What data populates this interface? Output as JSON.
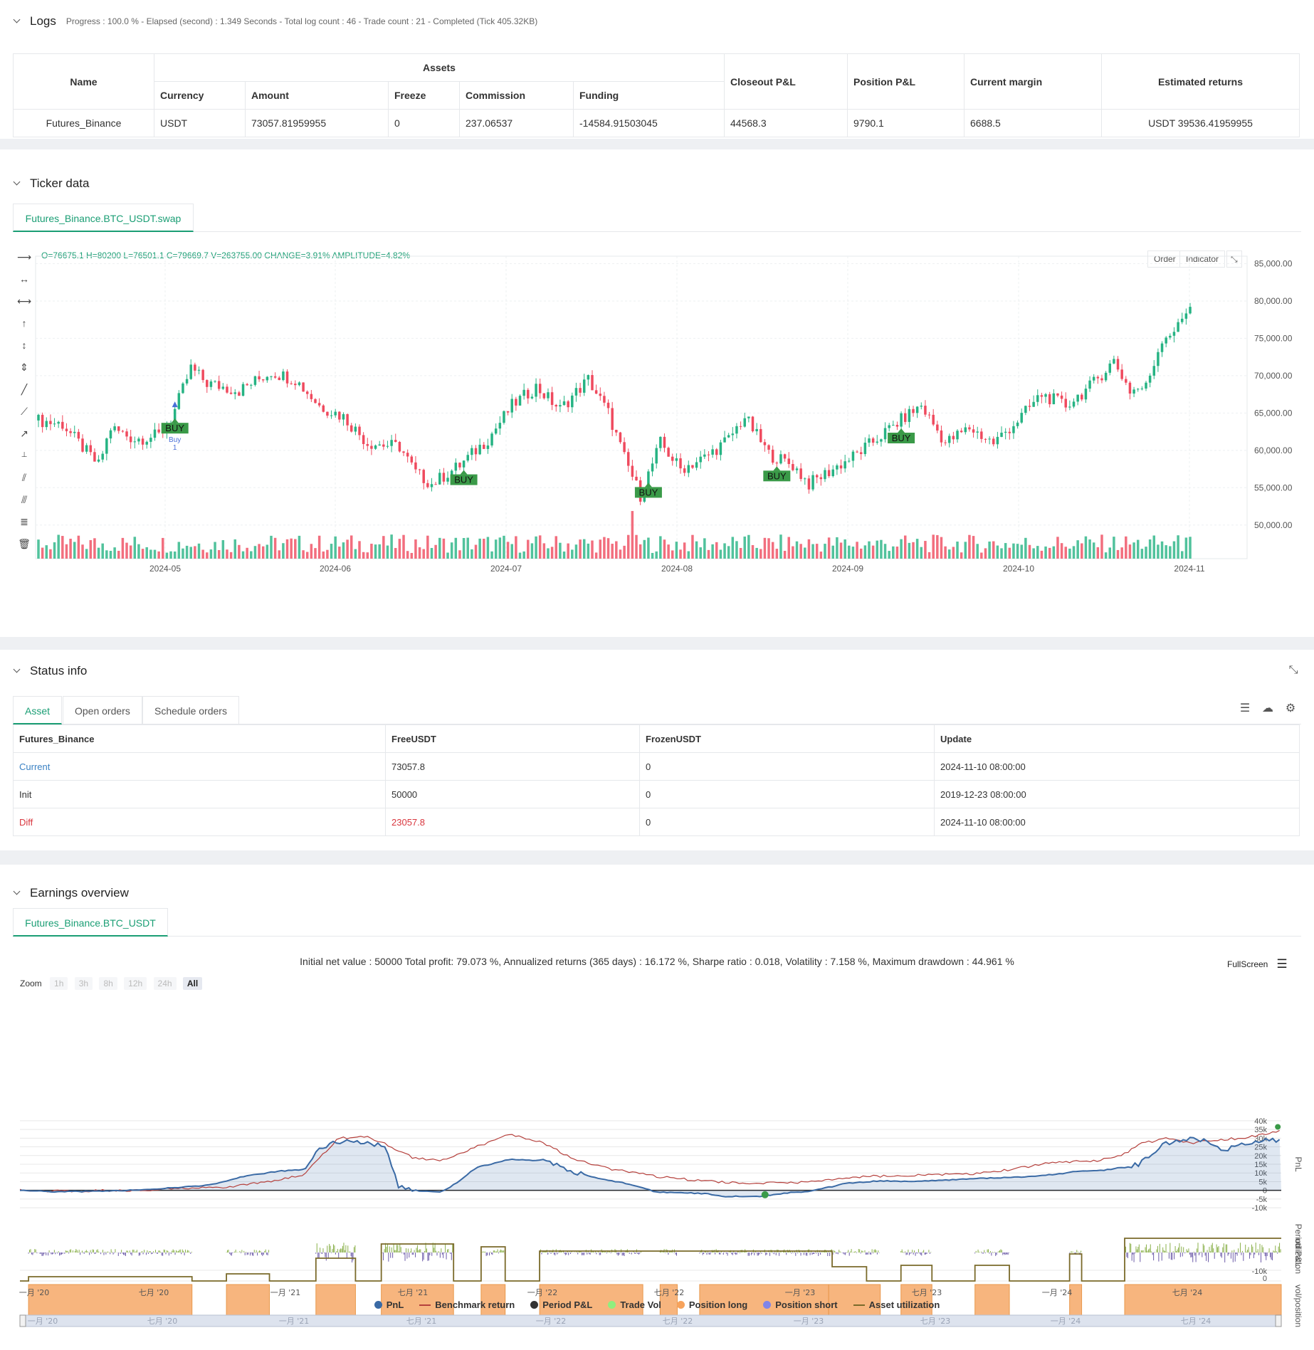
{
  "logs": {
    "title": "Logs",
    "summary": "Progress : 100.0 % - Elapsed (second) : 1.349  Seconds - Total log count : 46 - Trade count : 21 - Completed (Tick 405.32KB)",
    "table": {
      "headers": {
        "name": "Name",
        "assets": "Assets",
        "currency": "Currency",
        "amount": "Amount",
        "freeze": "Freeze",
        "commission": "Commission",
        "funding": "Funding",
        "closeout": "Closeout P&L",
        "position": "Position P&L",
        "margin": "Current margin",
        "returns": "Estimated returns"
      },
      "row": {
        "name": "Futures_Binance",
        "currency": "USDT",
        "amount": "73057.81959955",
        "freeze": "0",
        "commission": "237.06537",
        "funding": "-14584.91503045",
        "closeout": "44568.3",
        "position": "9790.1",
        "margin": "6688.5",
        "returns": "USDT 39536.41959955"
      }
    }
  },
  "ticker": {
    "title": "Ticker data",
    "tab": "Futures_Binance.BTC_USDT.swap",
    "ohlc": "O=76675.1 H=80200 L=76501.1 C=79669.7 V=263755.00 CHANGE=3.91% AMPLITUDE=4.82%",
    "buttons": {
      "order": "Order",
      "indicator": "Indicator"
    },
    "buy_label": "BUY",
    "buy_marker": "Buy",
    "buy_marker_num": "1"
  },
  "chart_data": [
    {
      "type": "candlestick",
      "x_ticks": [
        "2024-05",
        "2024-06",
        "2024-07",
        "2024-08",
        "2024-09",
        "2024-10",
        "2024-11"
      ],
      "y_ticks": [
        "85,000.00",
        "80,000.00",
        "75,000.00",
        "70,000.00",
        "65,000.00",
        "60,000.00",
        "55,000.00",
        "50,000.00"
      ],
      "ylim": [
        45500,
        86000
      ],
      "anchors": [
        [
          0,
          64000
        ],
        [
          6,
          63500
        ],
        [
          10,
          61000
        ],
        [
          15,
          58000
        ],
        [
          18,
          63000
        ],
        [
          24,
          61500
        ],
        [
          30,
          62000
        ],
        [
          33,
          64000
        ],
        [
          38,
          71000
        ],
        [
          42,
          69000
        ],
        [
          50,
          68000
        ],
        [
          58,
          70500
        ],
        [
          64,
          69500
        ],
        [
          70,
          66000
        ],
        [
          76,
          64500
        ],
        [
          82,
          61000
        ],
        [
          90,
          60500
        ],
        [
          94,
          57000
        ],
        [
          98,
          55500
        ],
        [
          105,
          58000
        ],
        [
          112,
          61500
        ],
        [
          118,
          66000
        ],
        [
          124,
          68500
        ],
        [
          130,
          65500
        ],
        [
          137,
          69500
        ],
        [
          142,
          65000
        ],
        [
          146,
          59000
        ],
        [
          150,
          54000
        ],
        [
          155,
          61000
        ],
        [
          160,
          57500
        ],
        [
          166,
          59000
        ],
        [
          172,
          61500
        ],
        [
          176,
          64500
        ],
        [
          182,
          59500
        ],
        [
          188,
          58000
        ],
        [
          192,
          55500
        ],
        [
          198,
          57500
        ],
        [
          204,
          59500
        ],
        [
          210,
          62000
        ],
        [
          216,
          64500
        ],
        [
          220,
          66000
        ],
        [
          226,
          61000
        ],
        [
          232,
          63000
        ],
        [
          238,
          61000
        ],
        [
          244,
          64000
        ],
        [
          250,
          67500
        ],
        [
          256,
          66000
        ],
        [
          262,
          68500
        ],
        [
          268,
          72000
        ],
        [
          272,
          68000
        ],
        [
          276,
          68500
        ],
        [
          280,
          75000
        ],
        [
          284,
          76500
        ],
        [
          287,
          79700
        ]
      ],
      "buy_signals": [
        34,
        106,
        152,
        184,
        215
      ]
    },
    {
      "type": "line",
      "title": "Initial net value : 50000 Total profit: 79.073 %, Annualized returns (365 days) : 16.172 %, Sharpe ratio : 0.018, Volatility : 7.158 %, Maximum drawdown : 44.961 %",
      "x_ticks": [
        "一月 '20",
        "七月 '20",
        "一月 '21",
        "七月 '21",
        "一月 '22",
        "七月 '22",
        "一月 '23",
        "七月 '23",
        "一月 '24",
        "七月 '24"
      ],
      "nav_ticks": [
        "一月 '20",
        "七月 '20",
        "一月 '21",
        "七月 '21",
        "一月 '22",
        "七月 '22",
        "一月 '23",
        "七月 '23",
        "一月 '24",
        "七月 '24"
      ],
      "y_ticks": [
        "40k",
        "35k",
        "30k",
        "25k",
        "20k",
        "15k",
        "10k",
        "5k",
        "0",
        "-5k",
        "-10k"
      ],
      "ylim": [
        -12000,
        42000
      ],
      "series": [
        {
          "name": "PnL",
          "color": "#3a6aa5",
          "points": [
            [
              0,
              0
            ],
            [
              20,
              -800
            ],
            [
              50,
              -500
            ],
            [
              80,
              800
            ],
            [
              110,
              3000
            ],
            [
              130,
              8000
            ],
            [
              150,
              11000
            ],
            [
              165,
              12000
            ],
            [
              175,
              25000
            ],
            [
              190,
              29000
            ],
            [
              200,
              27000
            ],
            [
              212,
              26000
            ],
            [
              220,
              2000
            ],
            [
              230,
              -500
            ],
            [
              245,
              -1000
            ],
            [
              255,
              5000
            ],
            [
              265,
              13000
            ],
            [
              285,
              18000
            ],
            [
              305,
              17000
            ],
            [
              320,
              11000
            ],
            [
              336,
              7000
            ],
            [
              352,
              4000
            ],
            [
              370,
              -1000
            ],
            [
              388,
              -1500
            ],
            [
              400,
              -2000
            ],
            [
              410,
              -3500
            ],
            [
              430,
              -3500
            ],
            [
              445,
              -1500
            ],
            [
              460,
              -500
            ],
            [
              480,
              4000
            ],
            [
              500,
              5500
            ],
            [
              520,
              5000
            ],
            [
              540,
              6000
            ],
            [
              560,
              7000
            ],
            [
              580,
              7500
            ],
            [
              600,
              9000
            ],
            [
              615,
              11000
            ],
            [
              630,
              11500
            ],
            [
              650,
              15000
            ],
            [
              665,
              27000
            ],
            [
              680,
              30000
            ],
            [
              690,
              28000
            ],
            [
              700,
              23000
            ],
            [
              712,
              27000
            ],
            [
              722,
              28500
            ],
            [
              733,
              29000
            ]
          ]
        },
        {
          "name": "Benchmark return",
          "color": "#b5403c",
          "points": [
            [
              0,
              0
            ],
            [
              30,
              -500
            ],
            [
              60,
              0
            ],
            [
              90,
              700
            ],
            [
              120,
              2000
            ],
            [
              150,
              6000
            ],
            [
              165,
              9000
            ],
            [
              185,
              30000
            ],
            [
              200,
              31000
            ],
            [
              212,
              27000
            ],
            [
              228,
              19000
            ],
            [
              245,
              17000
            ],
            [
              262,
              24000
            ],
            [
              285,
              32000
            ],
            [
              305,
              27000
            ],
            [
              322,
              18000
            ],
            [
              345,
              12000
            ],
            [
              370,
              8000
            ],
            [
              390,
              6000
            ],
            [
              410,
              4500
            ],
            [
              430,
              4000
            ],
            [
              450,
              4500
            ],
            [
              475,
              6500
            ],
            [
              495,
              8000
            ],
            [
              515,
              8500
            ],
            [
              535,
              9000
            ],
            [
              555,
              9500
            ],
            [
              575,
              12000
            ],
            [
              600,
              16000
            ],
            [
              625,
              17000
            ],
            [
              640,
              20000
            ],
            [
              652,
              27000
            ],
            [
              668,
              30000
            ],
            [
              680,
              27000
            ],
            [
              695,
              29000
            ],
            [
              710,
              30000
            ],
            [
              722,
              32000
            ],
            [
              733,
              34000
            ]
          ]
        }
      ]
    }
  ],
  "status": {
    "title": "Status info",
    "tabs": [
      "Asset",
      "Open orders",
      "Schedule orders"
    ],
    "headers": [
      "Futures_Binance",
      "FreeUSDT",
      "FrozenUSDT",
      "Update"
    ],
    "rows": [
      {
        "label": "Current",
        "free": "73057.8",
        "frozen": "0",
        "update": "2024-11-10 08:00:00"
      },
      {
        "label": "Init",
        "free": "50000",
        "frozen": "0",
        "update": "2019-12-23 08:00:00"
      },
      {
        "label": "Diff",
        "free": "23057.8",
        "frozen": "0",
        "update": "2024-11-10 08:00:00"
      }
    ],
    "colors": {
      "current": "#3b82c4",
      "diff": "#d9363e"
    }
  },
  "earnings": {
    "title": "Earnings overview",
    "tab": "Futures_Binance.BTC_USDT",
    "fullscreen": "FullScreen",
    "zoom_label": "Zoom",
    "zoom_buttons": [
      "1h",
      "3h",
      "8h",
      "12h",
      "24h",
      "All"
    ],
    "axis_labels": {
      "pnl": "PnL",
      "period": "Period P&L",
      "volpos": "vol/position",
      "util": "utilization",
      "period_min": "-10k",
      "zero_a": "0",
      "zero_b": "0"
    },
    "legend": [
      {
        "name": "PnL",
        "color": "#3a6aa5",
        "kind": "dot"
      },
      {
        "name": "Benchmark return",
        "color": "#b5403c",
        "kind": "line"
      },
      {
        "name": "Period P&L",
        "color": "#333333",
        "kind": "dot"
      },
      {
        "name": "Trade Vol",
        "color": "#90ee7e",
        "kind": "dot"
      },
      {
        "name": "Position long",
        "color": "#f7a35c",
        "kind": "dot"
      },
      {
        "name": "Position short",
        "color": "#8085e9",
        "kind": "dot"
      },
      {
        "name": "Asset utilization",
        "color": "#7a6a2a",
        "kind": "line"
      }
    ]
  },
  "colors": {
    "accent": "#1a9e74",
    "up": "#26b383",
    "down": "#ef4a5e",
    "buy": "#3a9a48"
  }
}
